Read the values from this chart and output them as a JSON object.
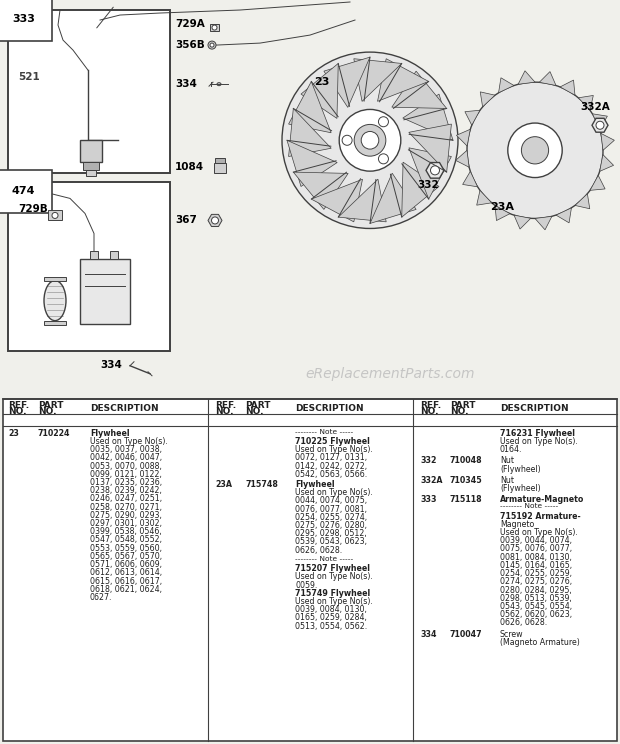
{
  "bg_color": "#f0f0eb",
  "diagram_bg": "#f0f0eb",
  "watermark": "eReplacementParts.com",
  "col1_data": [
    [
      "23",
      "710224",
      "Flywheel\nUsed on Type No(s).\n0035, 0037, 0038,\n0042, 0046, 0047,\n0053, 0070, 0088,\n0099, 0121, 0122,\n0137, 0235, 0236,\n0238, 0239, 0242,\n0246, 0247, 0251,\n0258, 0270, 0271,\n0275, 0290, 0293,\n0297, 0301, 0302,\n0399, 0538, 0546,\n0547, 0548, 0552,\n0553, 0559, 0560,\n0565, 0567, 0570,\n0571, 0606, 0609,\n0612, 0613, 0614,\n0615, 0616, 0617,\n0618, 0621, 0624,\n0627."
    ]
  ],
  "col2_note1": "-------- Note -----\n710225 Flywheel\nUsed on Type No(s).\n0072, 0127, 0131,\n0142, 0242, 0272,\n0542, 0563, 0566.",
  "col2_23a": [
    "23A",
    "715748",
    "Flywheel\nUsed on Type No(s).\n0044, 0074, 0075,\n0076, 0077, 0081,\n0254, 0255, 0274,\n0275, 0276, 0280,\n0295, 0298, 0512,\n0539, 0543, 0623,\n0626, 0628."
  ],
  "col2_note2": "-------- Note -----\n715207 Flywheel\nUsed on Type No(s).\n0059.\n715749 Flywheel\nUsed on Type No(s).\n0039, 0084, 0130,\n0165, 0259, 0284,\n0513, 0554, 0562.",
  "col3_data": [
    [
      "",
      "",
      "716231 Flywheel\nUsed on Type No(s).\n0164."
    ],
    [
      "332",
      "710048",
      "Nut\n(Flywheel)"
    ],
    [
      "332A",
      "710345",
      "Nut\n(Flywheel)"
    ],
    [
      "333",
      "715118",
      "Armature-Magneto\n-------- Note -----\n715192 Armature-\nMagneto\nUsed on Type No(s).\n0039, 0044, 0074,\n0075, 0076, 0077,\n0081, 0084, 0130,\n0145, 0164, 0165,\n0254, 0255, 0259,\n0274, 0275, 0276,\n0280, 0284, 0295,\n0298, 0513, 0539,\n0543, 0545, 0554,\n0562, 0620, 0623,\n0626, 0628."
    ],
    [
      "334",
      "710047",
      "Screw\n(Magneto Armature)"
    ]
  ],
  "line_color": "#404040",
  "fill_light": "#e8e8e8",
  "fill_mid": "#d0d0d0",
  "fill_dark": "#b0b0b0"
}
